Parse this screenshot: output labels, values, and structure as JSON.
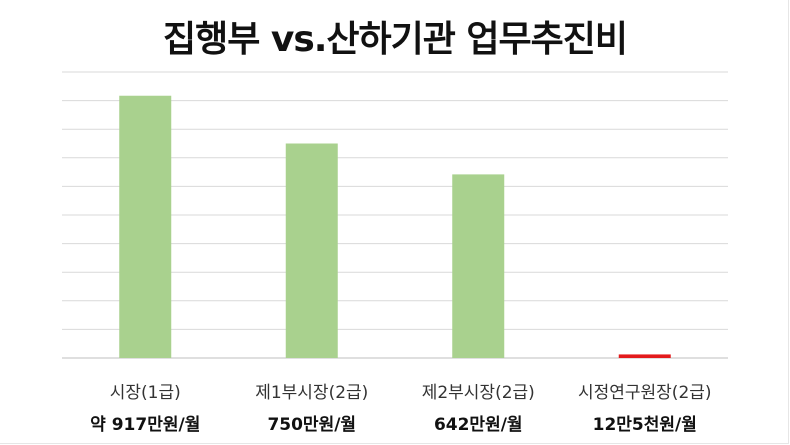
{
  "chart_data": {
    "type": "bar",
    "title": "집행부 vs.산하기관 업무추진비",
    "categories": [
      "시장(1급)",
      "제1부시장(2급)",
      "제2부시장(2급)",
      "시정연구원장(2급)"
    ],
    "value_labels": [
      "약 917만원/월",
      "750만원/월",
      "642만원/월",
      "12만5천원/월"
    ],
    "values": [
      917,
      750,
      642,
      12.5
    ],
    "unit": "만원/월",
    "ylim": [
      0,
      1000
    ],
    "grid": true,
    "colors": {
      "bar": "#a9d18e",
      "highlight": "#e31a1c",
      "grid": "#d9d9d9"
    }
  }
}
